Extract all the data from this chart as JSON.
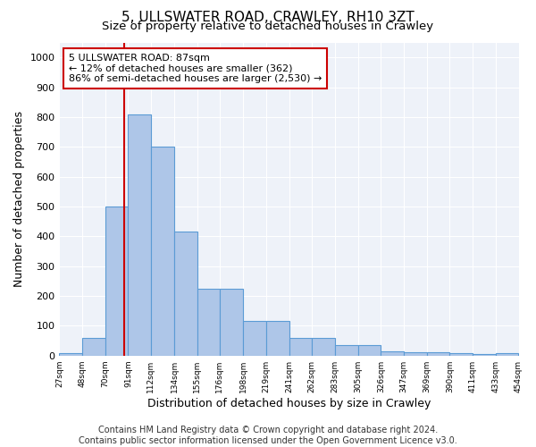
{
  "title1": "5, ULLSWATER ROAD, CRAWLEY, RH10 3ZT",
  "title2": "Size of property relative to detached houses in Crawley",
  "xlabel": "Distribution of detached houses by size in Crawley",
  "ylabel": "Number of detached properties",
  "bin_edges": [
    27,
    48,
    70,
    91,
    112,
    134,
    155,
    176,
    198,
    219,
    241,
    262,
    283,
    305,
    326,
    347,
    369,
    390,
    411,
    433,
    454
  ],
  "bar_heights": [
    8,
    60,
    500,
    810,
    700,
    415,
    225,
    225,
    115,
    115,
    60,
    60,
    35,
    35,
    15,
    12,
    10,
    8,
    5,
    8
  ],
  "bar_color": "#aec6e8",
  "bar_edge_color": "#5b9bd5",
  "property_size": 87,
  "annotation_title": "5 ULLSWATER ROAD: 87sqm",
  "annotation_line1": "← 12% of detached houses are smaller (362)",
  "annotation_line2": "86% of semi-detached houses are larger (2,530) →",
  "vline_color": "#cc0000",
  "annotation_box_edge_color": "#cc0000",
  "ylim": [
    0,
    1050
  ],
  "yticks": [
    0,
    100,
    200,
    300,
    400,
    500,
    600,
    700,
    800,
    900,
    1000
  ],
  "footer1": "Contains HM Land Registry data © Crown copyright and database right 2024.",
  "footer2": "Contains public sector information licensed under the Open Government Licence v3.0.",
  "bg_color": "#eef2f9",
  "title1_fontsize": 11,
  "title2_fontsize": 9.5,
  "xlabel_fontsize": 9,
  "ylabel_fontsize": 9,
  "footer_fontsize": 7,
  "annotation_fontsize": 8
}
